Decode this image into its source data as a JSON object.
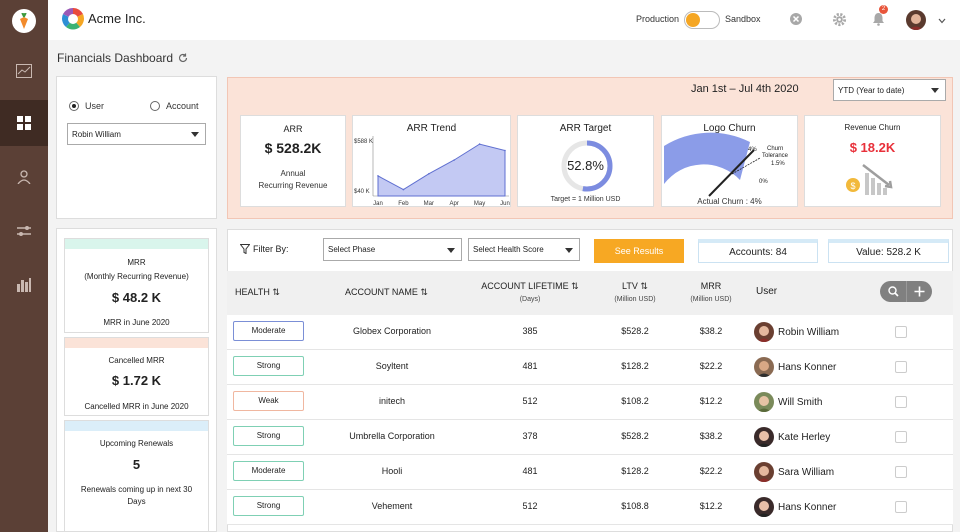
{
  "app": {
    "brand": "Acme Inc.",
    "page_title": "Financials Dashboard"
  },
  "header": {
    "env_left": "Production",
    "env_right": "Sandbox",
    "notifications": "2"
  },
  "sidebar": {
    "items": [
      "app-logo",
      "analytics",
      "dashboard",
      "users",
      "transfers",
      "reports"
    ],
    "active": "dashboard"
  },
  "selector": {
    "radio_user": "User",
    "radio_account": "Account",
    "selected_radio": "User",
    "user_select": "Robin William"
  },
  "period": {
    "range": "Jan 1st – Jul 4th 2020",
    "select": "YTD (Year to date)"
  },
  "kpis": {
    "arr": {
      "title": "ARR",
      "value": "$ 528.2K",
      "caption_line1": "Annual",
      "caption_line2": "Recurring Revenue"
    },
    "arr_trend": {
      "title": "ARR Trend",
      "y_top": "$588 K",
      "y_bottom": "$40 K"
    },
    "arr_target": {
      "title": "ARR Target",
      "value": "52.8%",
      "caption": "Target = 1 Million USD",
      "fraction": 0.528
    },
    "logo_churn": {
      "title": "Logo Churn",
      "tick_top": "4%",
      "tick_mid": "1.5%",
      "tick_low": "0%",
      "tolerance_label_1": "Churn",
      "tolerance_label_2": "Tolerance",
      "caption": "Actual Churn : 4%"
    },
    "revenue_churn": {
      "title": "Revenue Churn",
      "value": "$ 18.2K"
    }
  },
  "chart_data": {
    "type": "area",
    "categories": [
      "Jan",
      "Feb",
      "Mar",
      "Apr",
      "May",
      "Jun"
    ],
    "values": [
      230,
      100,
      250,
      380,
      530,
      470
    ],
    "ylim": [
      40,
      588
    ],
    "title": "ARR Trend",
    "xlabel": "",
    "ylabel": ""
  },
  "summary": {
    "mrr": {
      "title_1": "MRR",
      "title_2": "(Monthly Recurring Revenue)",
      "value": "$ 48.2 K",
      "caption": "MRR in June 2020",
      "color": "#d9f5ec"
    },
    "cancelled": {
      "title": "Cancelled MRR",
      "value": "$ 1.72 K",
      "caption": "Cancelled MRR in June 2020",
      "color": "#fbe3d8"
    },
    "renewals": {
      "title": "Upcoming Renewals",
      "value": "5",
      "caption_1": "Renewals coming up in next 30",
      "caption_2": "Days",
      "color": "#dbeef9"
    }
  },
  "filters": {
    "label": "Filter By:",
    "phase_select": "Select Phase",
    "health_select": "Select Health Score",
    "button": "See Results",
    "accounts": "Accounts: 84",
    "value": "Value: 528.2 K"
  },
  "table": {
    "headers": {
      "health": "HEALTH",
      "account": "ACCOUNT NAME",
      "lifetime": "ACCOUNT LIFETIME",
      "lifetime_sub": "(Days)",
      "ltv": "LTV",
      "ltv_sub": "(Million USD)",
      "mrr": "MRR",
      "mrr_sub": "(Million USD)",
      "user": "User"
    },
    "rows": [
      {
        "health": "Moderate",
        "account": "Globex Corporation",
        "lifetime": "385",
        "ltv": "$528.2",
        "mrr": "$38.2",
        "user": "Robin William",
        "health_color": "#7b8fd6"
      },
      {
        "health": "Strong",
        "account": "Soyltent",
        "lifetime": "481",
        "ltv": "$128.2",
        "mrr": "$22.2",
        "user": "Hans Konner",
        "health_color": "#7fd0b4"
      },
      {
        "health": "Weak",
        "account": "initech",
        "lifetime": "512",
        "ltv": "$108.2",
        "mrr": "$12.2",
        "user": "Will Smith",
        "health_color": "#f0b7a0"
      },
      {
        "health": "Strong",
        "account": "Umbrella Corporation",
        "lifetime": "378",
        "ltv": "$528.2",
        "mrr": "$38.2",
        "user": "Kate Herley",
        "health_color": "#7fd0b4"
      },
      {
        "health": "Moderate",
        "account": "Hooli",
        "lifetime": "481",
        "ltv": "$128.2",
        "mrr": "$22.2",
        "user": "Sara William",
        "health_color": "#7fd0b4"
      },
      {
        "health": "Strong",
        "account": "Vehement",
        "lifetime": "512",
        "ltv": "$108.8",
        "mrr": "$12.2",
        "user": "Hans Konner",
        "health_color": "#7fd0b4"
      }
    ]
  }
}
